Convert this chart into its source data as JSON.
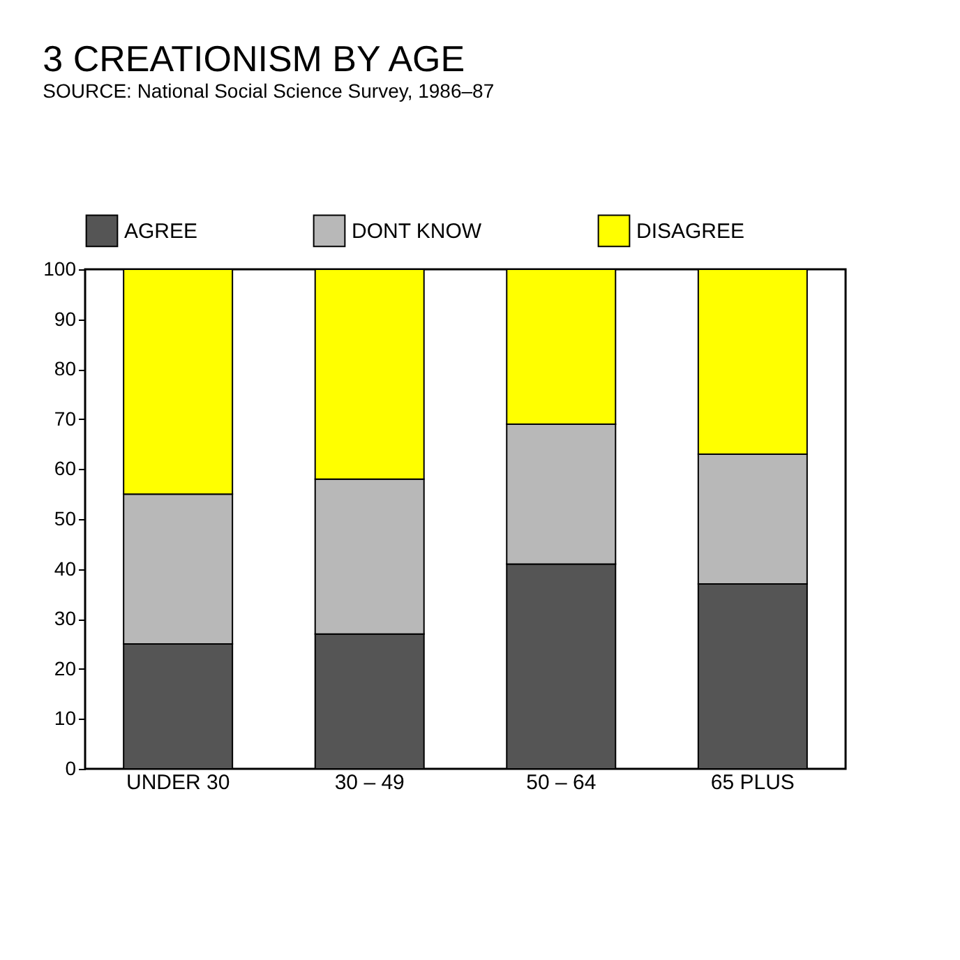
{
  "chart_data": {
    "type": "bar",
    "title": "3 CREATIONISM BY AGE",
    "subtitle": "SOURCE: National Social Science Survey, 1986–87",
    "categories": [
      "UNDER 30",
      "30 – 49",
      "50 – 64",
      "65 PLUS"
    ],
    "stacked": true,
    "series": [
      {
        "name": "AGREE",
        "color": "#555555",
        "values": [
          25,
          27,
          41,
          37
        ]
      },
      {
        "name": "DONT KNOW",
        "color": "#b8b8b8",
        "values": [
          30,
          31,
          28,
          26
        ]
      },
      {
        "name": "DISAGREE",
        "color": "#ffff00",
        "values": [
          45,
          42,
          31,
          37
        ]
      }
    ],
    "ylim": [
      0,
      100
    ],
    "yticks": [
      0,
      10,
      20,
      30,
      40,
      50,
      60,
      70,
      80,
      90,
      100
    ],
    "grid": false,
    "legend": "top"
  }
}
